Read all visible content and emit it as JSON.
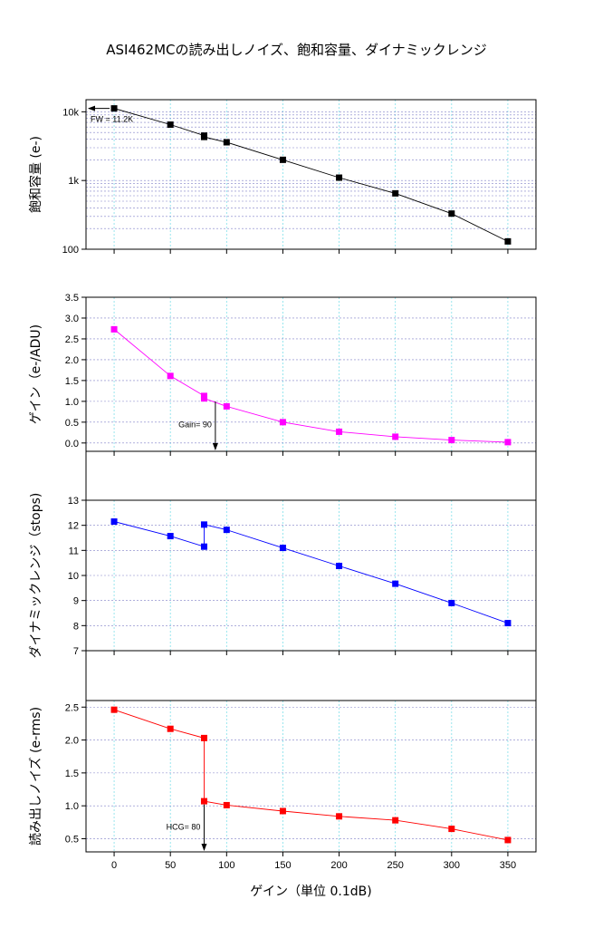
{
  "title": "ASI462MCの読み出しノイズ、飽和容量、ダイナミックレンジ",
  "xlabel": "ゲイン（単位 0.1dB)",
  "x_ticks": [
    0,
    50,
    100,
    150,
    200,
    250,
    300,
    350
  ],
  "chart_data": [
    {
      "type": "line",
      "ylabel": "飽和容量 (e-)",
      "yscale": "log",
      "ylim": [
        100,
        15000
      ],
      "y_tick_labels": [
        "100",
        "1k",
        "10k"
      ],
      "y_tick_values": [
        100,
        1000,
        10000
      ],
      "color": "#000000",
      "grid": true,
      "x": [
        0,
        50,
        80,
        80,
        100,
        150,
        200,
        250,
        300,
        350
      ],
      "y": [
        11200,
        6500,
        4500,
        4300,
        3600,
        2000,
        1100,
        650,
        330,
        130
      ],
      "annotation": {
        "text": "FW = 11.2K",
        "x": 0,
        "y": 11200
      }
    },
    {
      "type": "line",
      "ylabel": "ゲイン（e-/ADU)",
      "ylim": [
        -0.2,
        3.5
      ],
      "y_tick_labels": [
        "0.0",
        "0.5",
        "1.0",
        "1.5",
        "2.0",
        "2.5",
        "3.0",
        "3.5"
      ],
      "y_tick_values": [
        0,
        0.5,
        1.0,
        1.5,
        2.0,
        2.5,
        3.0,
        3.5
      ],
      "color": "#ff00ff",
      "grid": true,
      "x": [
        0,
        50,
        80,
        80,
        100,
        150,
        200,
        250,
        300,
        350
      ],
      "y": [
        2.73,
        1.61,
        1.13,
        1.07,
        0.88,
        0.5,
        0.27,
        0.15,
        0.07,
        0.02
      ],
      "annotation": {
        "text": "Gain= 90",
        "x": 90
      }
    },
    {
      "type": "line",
      "ylabel": "ダイナミックレンジ（stops)",
      "ylim": [
        7,
        13
      ],
      "y_tick_labels": [
        "7",
        "8",
        "9",
        "10",
        "11",
        "12",
        "13"
      ],
      "y_tick_values": [
        7,
        8,
        9,
        10,
        11,
        12,
        13
      ],
      "color": "#0000ff",
      "grid": true,
      "x": [
        0,
        50,
        80,
        80,
        100,
        150,
        200,
        250,
        300,
        350
      ],
      "y": [
        12.15,
        11.57,
        11.15,
        12.03,
        11.82,
        11.1,
        10.38,
        9.67,
        8.9,
        8.1
      ]
    },
    {
      "type": "line",
      "ylabel": "読み出しノイズ (e-rms)",
      "ylim": [
        0.3,
        2.6
      ],
      "y_tick_labels": [
        "0.5",
        "1.0",
        "1.5",
        "2.0",
        "2.5"
      ],
      "y_tick_values": [
        0.5,
        1.0,
        1.5,
        2.0,
        2.5
      ],
      "color": "#ff0000",
      "grid": true,
      "x": [
        0,
        50,
        80,
        80,
        100,
        150,
        200,
        250,
        300,
        350
      ],
      "y": [
        2.46,
        2.17,
        2.03,
        1.07,
        1.01,
        0.92,
        0.84,
        0.78,
        0.65,
        0.48
      ],
      "annotation": {
        "text": "HCG= 80",
        "x": 80
      }
    }
  ]
}
